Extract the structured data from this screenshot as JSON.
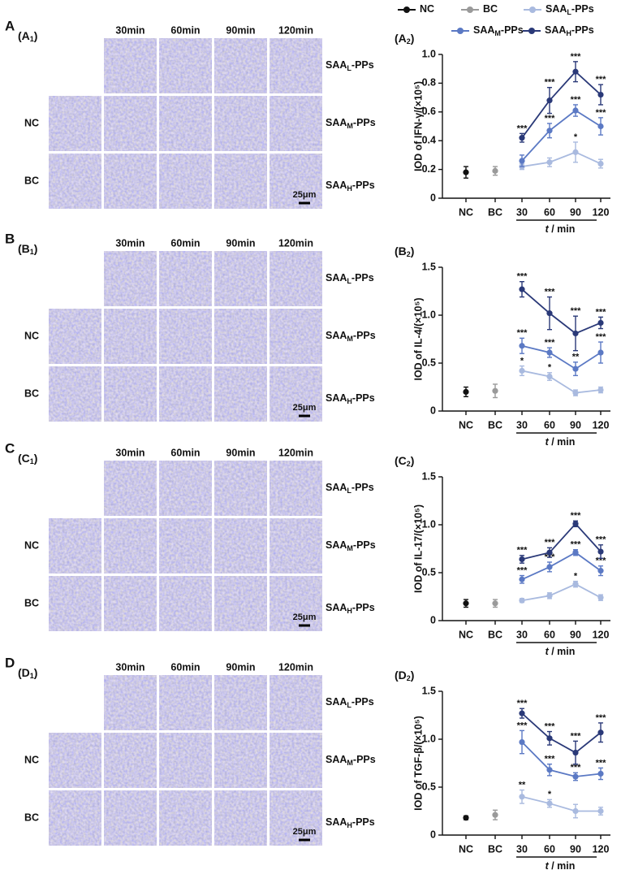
{
  "legend": [
    {
      "name": [
        "NC"
      ],
      "color": "#111111"
    },
    {
      "name": [
        "BC"
      ],
      "color": "#9a9a9a"
    },
    {
      "name": [
        "SAA",
        "L",
        "-PPs"
      ],
      "color": "#a9badf"
    },
    {
      "name": [
        "SAA",
        "M",
        "-PPs"
      ],
      "color": "#5b79c4"
    },
    {
      "name": [
        "SAA",
        "H",
        "-PPs"
      ],
      "color": "#2a3978"
    }
  ],
  "panels": [
    {
      "letter": "A",
      "image_label": [
        "(A",
        "1",
        ")"
      ],
      "chart_label": [
        "(A",
        "2",
        ")"
      ],
      "columns": [
        "30min",
        "60min",
        "90min",
        "120min"
      ],
      "rows": [
        "NC",
        "BC"
      ],
      "groups": [
        [
          "SAA",
          "L",
          "-PPs"
        ],
        [
          "SAA",
          "M",
          "-PPs"
        ],
        [
          "SAA",
          "H",
          "-PPs"
        ]
      ],
      "scale_bar": "25μm"
    },
    {
      "letter": "B",
      "image_label": [
        "(B",
        "1",
        ")"
      ],
      "chart_label": [
        "(B",
        "2",
        ")"
      ],
      "columns": [
        "30min",
        "60min",
        "90min",
        "120min"
      ],
      "rows": [
        "NC",
        "BC"
      ],
      "groups": [
        [
          "SAA",
          "L",
          "-PPs"
        ],
        [
          "SAA",
          "M",
          "-PPs"
        ],
        [
          "SAA",
          "H",
          "-PPs"
        ]
      ],
      "scale_bar": "25μm"
    },
    {
      "letter": "C",
      "image_label": [
        "(C",
        "1",
        ")"
      ],
      "chart_label": [
        "(C",
        "2",
        ")"
      ],
      "columns": [
        "30min",
        "60min",
        "90min",
        "120min"
      ],
      "rows": [
        "NC",
        "BC"
      ],
      "groups": [
        [
          "SAA",
          "L",
          "-PPs"
        ],
        [
          "SAA",
          "M",
          "-PPs"
        ],
        [
          "SAA",
          "H",
          "-PPs"
        ]
      ],
      "scale_bar": "25μm"
    },
    {
      "letter": "D",
      "image_label": [
        "(D",
        "1",
        ")"
      ],
      "chart_label": [
        "(D",
        "2",
        ")"
      ],
      "columns": [
        "30min",
        "60min",
        "90min",
        "120min"
      ],
      "rows": [
        "NC",
        "BC"
      ],
      "groups": [
        [
          "SAA",
          "L",
          "-PPs"
        ],
        [
          "SAA",
          "M",
          "-PPs"
        ],
        [
          "SAA",
          "H",
          "-PPs"
        ]
      ],
      "scale_bar": "25μm"
    }
  ],
  "chart_data": [
    {
      "type": "line",
      "ylabel": "IOD of IFN-γ/(×10⁵)",
      "xlabel": [
        "t",
        " / min"
      ],
      "categories": [
        "NC",
        "BC",
        "30",
        "60",
        "90",
        "120"
      ],
      "ylim": [
        0,
        1.0
      ],
      "yticks": [
        0,
        0.2,
        0.4,
        0.6,
        0.8,
        {
          "value": 1.0,
          "label": "1.0"
        }
      ],
      "series": [
        {
          "values": [
            0.18,
            null,
            null,
            null,
            null,
            null
          ],
          "errors": [
            0.04,
            null,
            null,
            null,
            null,
            null
          ]
        },
        {
          "values": [
            null,
            0.19,
            null,
            null,
            null,
            null
          ],
          "errors": [
            null,
            0.03,
            null,
            null,
            null,
            null
          ]
        },
        {
          "values": [
            null,
            null,
            0.22,
            0.25,
            0.32,
            0.24
          ],
          "errors": [
            null,
            null,
            0.02,
            0.03,
            0.07,
            0.03
          ],
          "stars": [
            null,
            null,
            null,
            null,
            "*",
            null
          ]
        },
        {
          "values": [
            null,
            null,
            0.26,
            0.47,
            0.61,
            0.5
          ],
          "errors": [
            null,
            null,
            0.04,
            0.05,
            0.04,
            0.06
          ],
          "stars": [
            null,
            null,
            null,
            "***",
            "***",
            "***"
          ]
        },
        {
          "values": [
            null,
            null,
            0.42,
            0.68,
            0.88,
            0.72
          ],
          "errors": [
            null,
            null,
            0.03,
            0.09,
            0.07,
            0.07
          ],
          "stars": [
            null,
            null,
            "***",
            "***",
            "***",
            "***"
          ]
        }
      ]
    },
    {
      "type": "line",
      "ylabel": "IOD of IL-4/(×10⁵)",
      "xlabel": [
        "t",
        " / min"
      ],
      "categories": [
        "NC",
        "BC",
        "30",
        "60",
        "90",
        "120"
      ],
      "ylim": [
        0,
        1.5
      ],
      "yticks": [
        0,
        0.5,
        {
          "value": 1.0,
          "label": "1.0"
        },
        1.5
      ],
      "series": [
        {
          "values": [
            0.2,
            null,
            null,
            null,
            null,
            null
          ],
          "errors": [
            0.05,
            null,
            null,
            null,
            null,
            null
          ]
        },
        {
          "values": [
            null,
            0.21,
            null,
            null,
            null,
            null
          ],
          "errors": [
            null,
            0.07,
            null,
            null,
            null,
            null
          ]
        },
        {
          "values": [
            null,
            null,
            0.42,
            0.36,
            0.19,
            0.22
          ],
          "errors": [
            null,
            null,
            0.05,
            0.04,
            0.03,
            0.03
          ],
          "stars": [
            null,
            null,
            "*",
            "*",
            null,
            null
          ]
        },
        {
          "values": [
            null,
            null,
            0.68,
            0.61,
            0.44,
            0.61
          ],
          "errors": [
            null,
            null,
            0.08,
            0.05,
            0.07,
            0.11
          ],
          "stars": [
            null,
            null,
            "***",
            "***",
            "**",
            "***"
          ]
        },
        {
          "values": [
            null,
            null,
            1.27,
            1.02,
            0.81,
            0.92
          ],
          "errors": [
            null,
            null,
            0.08,
            0.17,
            0.18,
            0.06
          ],
          "stars": [
            null,
            null,
            "***",
            "***",
            "***",
            "***"
          ]
        }
      ]
    },
    {
      "type": "line",
      "ylabel": "IOD of IL-17/(×10⁵)",
      "xlabel": [
        "t",
        " / min"
      ],
      "categories": [
        "NC",
        "BC",
        "30",
        "60",
        "90",
        "120"
      ],
      "ylim": [
        0,
        1.5
      ],
      "yticks": [
        0,
        0.5,
        {
          "value": 1.0,
          "label": "1.0"
        },
        1.5
      ],
      "series": [
        {
          "values": [
            0.18,
            null,
            null,
            null,
            null,
            null
          ],
          "errors": [
            0.04,
            null,
            null,
            null,
            null,
            null
          ]
        },
        {
          "values": [
            null,
            0.18,
            null,
            null,
            null,
            null
          ],
          "errors": [
            null,
            0.04,
            null,
            null,
            null,
            null
          ]
        },
        {
          "values": [
            null,
            null,
            0.21,
            0.26,
            0.38,
            0.24
          ],
          "errors": [
            null,
            null,
            0.02,
            0.03,
            0.03,
            0.03
          ],
          "stars": [
            null,
            null,
            null,
            null,
            "*",
            null
          ]
        },
        {
          "values": [
            null,
            null,
            0.43,
            0.56,
            0.71,
            0.52
          ],
          "errors": [
            null,
            null,
            0.04,
            0.05,
            0.03,
            0.05
          ],
          "stars": [
            null,
            null,
            "***",
            "***",
            "***",
            "***"
          ]
        },
        {
          "values": [
            null,
            null,
            0.64,
            0.71,
            1.01,
            0.72
          ],
          "errors": [
            null,
            null,
            0.04,
            0.05,
            0.03,
            0.07
          ],
          "stars": [
            null,
            null,
            "***",
            "***",
            "***",
            "***"
          ]
        }
      ]
    },
    {
      "type": "line",
      "ylabel": "IOD of TGF-β/(×10⁵)",
      "xlabel": [
        "t",
        " / min"
      ],
      "categories": [
        "NC",
        "BC",
        "30",
        "60",
        "90",
        "120"
      ],
      "ylim": [
        0,
        1.5
      ],
      "yticks": [
        0,
        0.5,
        {
          "value": 1.0,
          "label": "1.0"
        },
        1.5
      ],
      "series": [
        {
          "values": [
            0.18,
            null,
            null,
            null,
            null,
            null
          ],
          "errors": [
            0.02,
            null,
            null,
            null,
            null,
            null
          ]
        },
        {
          "values": [
            null,
            0.21,
            null,
            null,
            null,
            null
          ],
          "errors": [
            null,
            0.05,
            null,
            null,
            null,
            null
          ]
        },
        {
          "values": [
            null,
            null,
            0.4,
            0.33,
            0.25,
            0.25
          ],
          "errors": [
            null,
            null,
            0.07,
            0.04,
            0.07,
            0.04
          ],
          "stars": [
            null,
            null,
            "**",
            "*",
            null,
            null
          ]
        },
        {
          "values": [
            null,
            null,
            0.97,
            0.68,
            0.61,
            0.64
          ],
          "errors": [
            null,
            null,
            0.12,
            0.06,
            0.04,
            0.06
          ],
          "stars": [
            null,
            null,
            "***",
            "***",
            "***",
            "***"
          ]
        },
        {
          "values": [
            null,
            null,
            1.27,
            1.01,
            0.86,
            1.07
          ],
          "errors": [
            null,
            null,
            0.05,
            0.07,
            0.12,
            0.1
          ],
          "stars": [
            null,
            null,
            "***",
            "***",
            "***",
            "***"
          ]
        }
      ]
    }
  ]
}
